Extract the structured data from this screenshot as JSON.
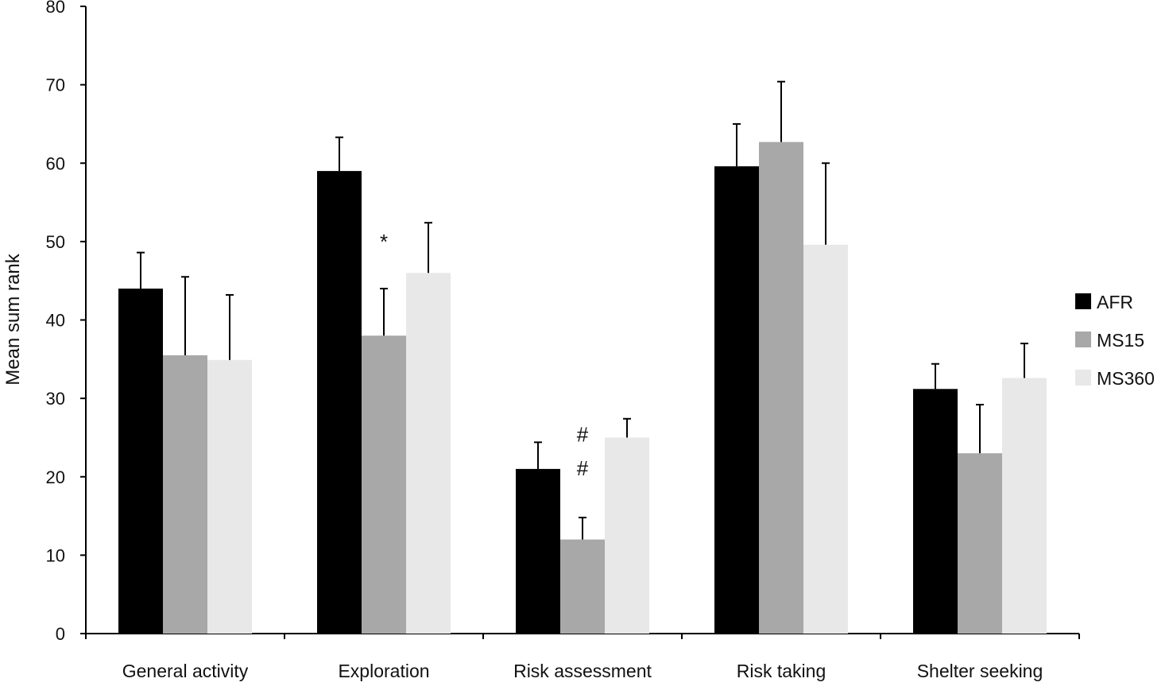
{
  "chart_data": {
    "type": "bar",
    "title": "",
    "xlabel": "",
    "ylabel": "Mean sum rank",
    "ylim": [
      0,
      80
    ],
    "yticks": [
      0,
      10,
      20,
      30,
      40,
      50,
      60,
      70,
      80
    ],
    "grid": false,
    "legend_position": "right",
    "categories": [
      "General activity",
      "Exploration",
      "Risk assessment",
      "Risk taking",
      "Shelter seeking"
    ],
    "series": [
      {
        "name": "AFR",
        "color": "#000000",
        "values": [
          44,
          59,
          21,
          59.6,
          31.2
        ],
        "errors": [
          4.6,
          4.3,
          3.4,
          5.4,
          3.2
        ]
      },
      {
        "name": "MS15",
        "color": "#a8a8a8",
        "values": [
          35.5,
          38,
          12,
          62.7,
          23
        ],
        "errors": [
          10,
          6,
          2.8,
          7.7,
          6.2
        ]
      },
      {
        "name": "MS360",
        "color": "#e8e8e8",
        "values": [
          34.9,
          46,
          25,
          49.6,
          32.6
        ],
        "errors": [
          8.3,
          6.4,
          2.4,
          10.4,
          4.4
        ]
      }
    ],
    "annotations": [
      {
        "text": "*",
        "category_index": 1,
        "series_index": 1,
        "y": 50
      },
      {
        "text": "#",
        "category_index": 2,
        "series_index": 1,
        "y": 25.4
      },
      {
        "text": "#",
        "category_index": 2,
        "series_index": 1,
        "y": 21.1
      }
    ]
  }
}
